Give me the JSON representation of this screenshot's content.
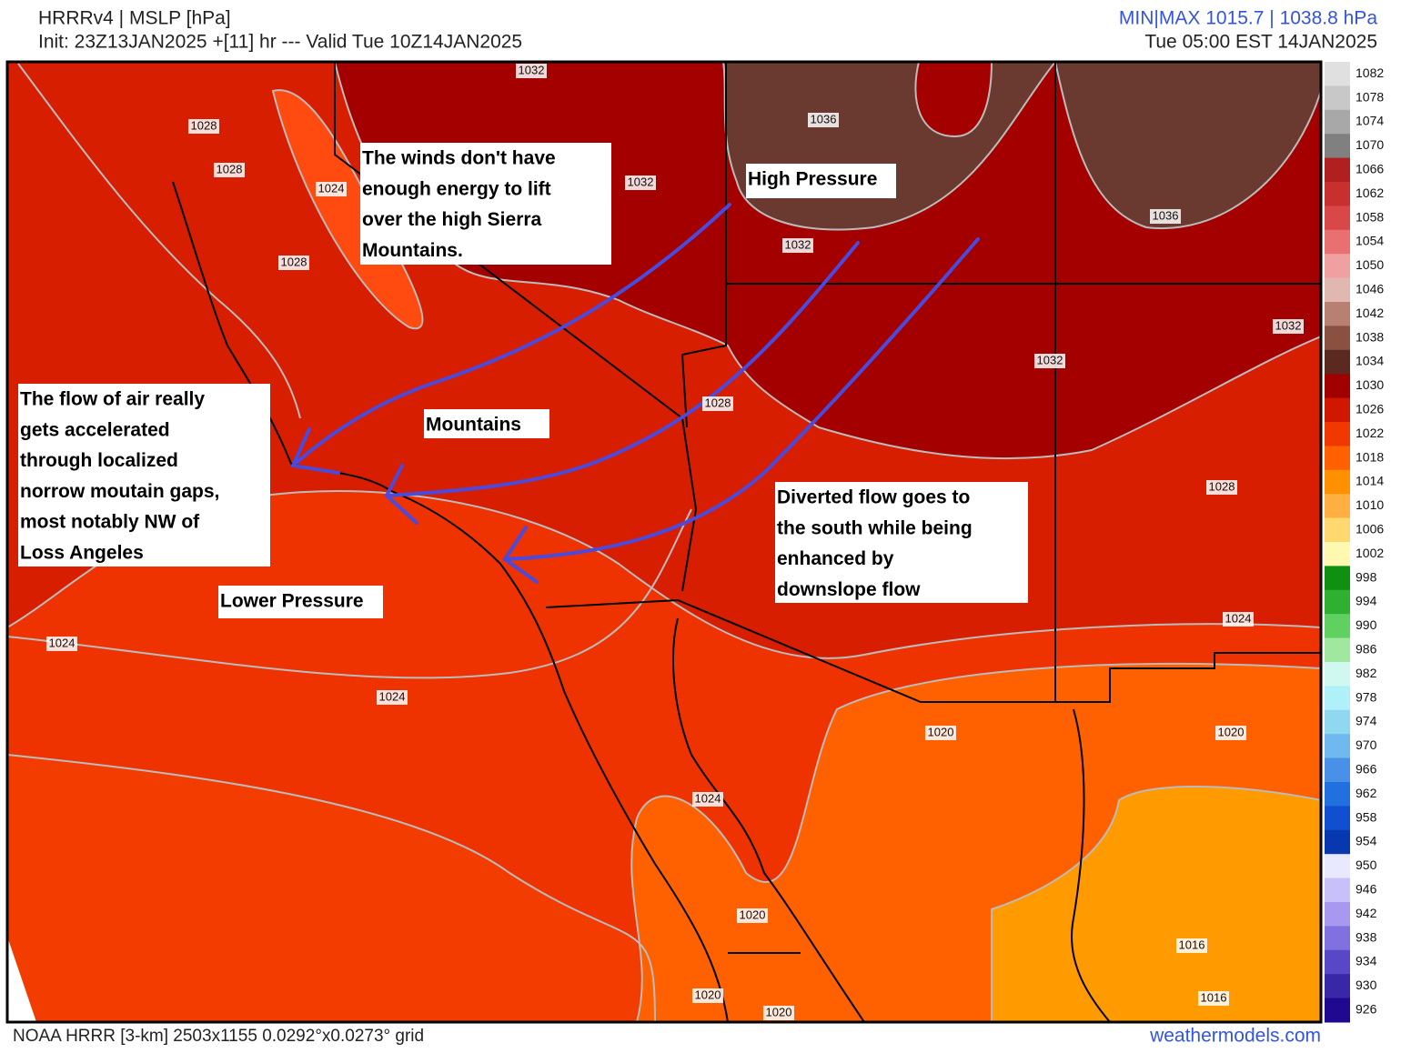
{
  "header": {
    "title": "HRRRv4 | MSLP [hPa]",
    "init": "Init: 23Z13JAN2025 +[11] hr --- Valid Tue 10Z14JAN2025",
    "minmax": "MIN|MAX 1015.7 | 1038.8 hPa",
    "local_time": "Tue 05:00 EST 14JAN2025"
  },
  "annotations": [
    {
      "lines": [
        "The winds don't have",
        "enough energy to lift",
        "over the high Sierra",
        "Mountains."
      ]
    },
    {
      "lines": [
        "High Pressure"
      ]
    },
    {
      "lines": [
        "The flow of air really",
        "gets accelerated",
        "through localized",
        "norrow moutain gaps,",
        "most notably NW of",
        "Loss Angeles"
      ]
    },
    {
      "lines": [
        "Mountains"
      ]
    },
    {
      "lines": [
        "Diverted flow goes to",
        "the south while being",
        "enhanced by",
        "downslope flow"
      ]
    },
    {
      "lines": [
        "Lower Pressure"
      ]
    }
  ],
  "contour_labels": [
    "1032",
    "1028",
    "1028",
    "1024",
    "1028",
    "1032",
    "1036",
    "1032",
    "1036",
    "1032",
    "1032",
    "1028",
    "1028",
    "1024",
    "1024",
    "1024",
    "1020",
    "1020",
    "1024",
    "1020",
    "1016",
    "1020",
    "1016",
    "1020"
  ],
  "colorbar": {
    "labels": [
      "1082",
      "1078",
      "1074",
      "1070",
      "1066",
      "1062",
      "1058",
      "1054",
      "1050",
      "1046",
      "1042",
      "1038",
      "1034",
      "1030",
      "1026",
      "1022",
      "1018",
      "1014",
      "1010",
      "1006",
      "1002",
      "998",
      "994",
      "990",
      "986",
      "982",
      "978",
      "974",
      "970",
      "966",
      "962",
      "958",
      "954",
      "950",
      "946",
      "942",
      "938",
      "934",
      "930",
      "926"
    ],
    "colors": [
      "#e0e0e0",
      "#c8c8c8",
      "#a8a8a8",
      "#808080",
      "#b02020",
      "#c83030",
      "#d84848",
      "#e87070",
      "#f0a0a0",
      "#e0b8b0",
      "#b88070",
      "#8a5040",
      "#5a2a20",
      "#a00000",
      "#d01800",
      "#f03800",
      "#ff6000",
      "#ff9000",
      "#ffb040",
      "#ffd870",
      "#fff8b0",
      "#109010",
      "#30b030",
      "#60d060",
      "#a0e8a0",
      "#d0f8f0",
      "#b0f0f8",
      "#90d8f0",
      "#70b8f0",
      "#4890e8",
      "#2070e0",
      "#1050d0",
      "#0838b0",
      "#e8e8ff",
      "#c8c0f8",
      "#a898f0",
      "#8070e0",
      "#5848c8",
      "#3828a8",
      "#200890"
    ]
  },
  "footer": {
    "grid": "NOAA HRRR [3-km] 2503x1155 0.0292°x0.0273° grid",
    "source": "weathermodels.com"
  }
}
